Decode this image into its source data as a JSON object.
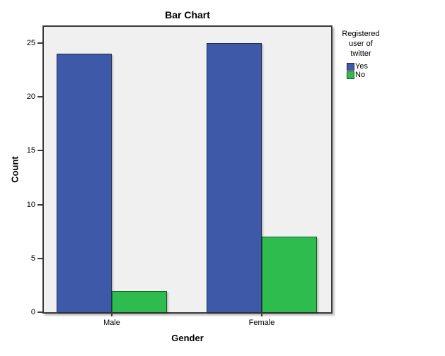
{
  "title": "Bar Chart",
  "axes": {
    "x_label": "Gender",
    "y_label": "Count"
  },
  "legend": {
    "title_lines": [
      "Registered",
      "user of",
      "twitter"
    ],
    "entries": [
      {
        "label": "Yes",
        "color": "#3E59A8",
        "border": "#232A4D"
      },
      {
        "label": "No",
        "color": "#2FBC4F",
        "border": "#155A23"
      }
    ]
  },
  "colors": {
    "plot_background": "#F0F0F0",
    "frame": "#3A3A3A",
    "series_yes": "#3E59A8",
    "series_no": "#2FBC4F"
  },
  "chart_data": {
    "type": "bar",
    "title": "Bar Chart",
    "xlabel": "Gender",
    "ylabel": "Count",
    "categories": [
      "Male",
      "Female"
    ],
    "series": [
      {
        "name": "Yes",
        "color": "#3E59A8",
        "border": "#232A4D",
        "values": [
          24,
          25
        ]
      },
      {
        "name": "No",
        "color": "#2FBC4F",
        "border": "#155A23",
        "values": [
          2,
          7
        ]
      }
    ],
    "yticks": [
      0,
      5,
      10,
      15,
      20,
      25
    ],
    "ylim": [
      0,
      26.6
    ],
    "grid": false,
    "legend_title": "Registered user of twitter",
    "legend_position": "right",
    "plot_background": "#F0F0F0"
  }
}
